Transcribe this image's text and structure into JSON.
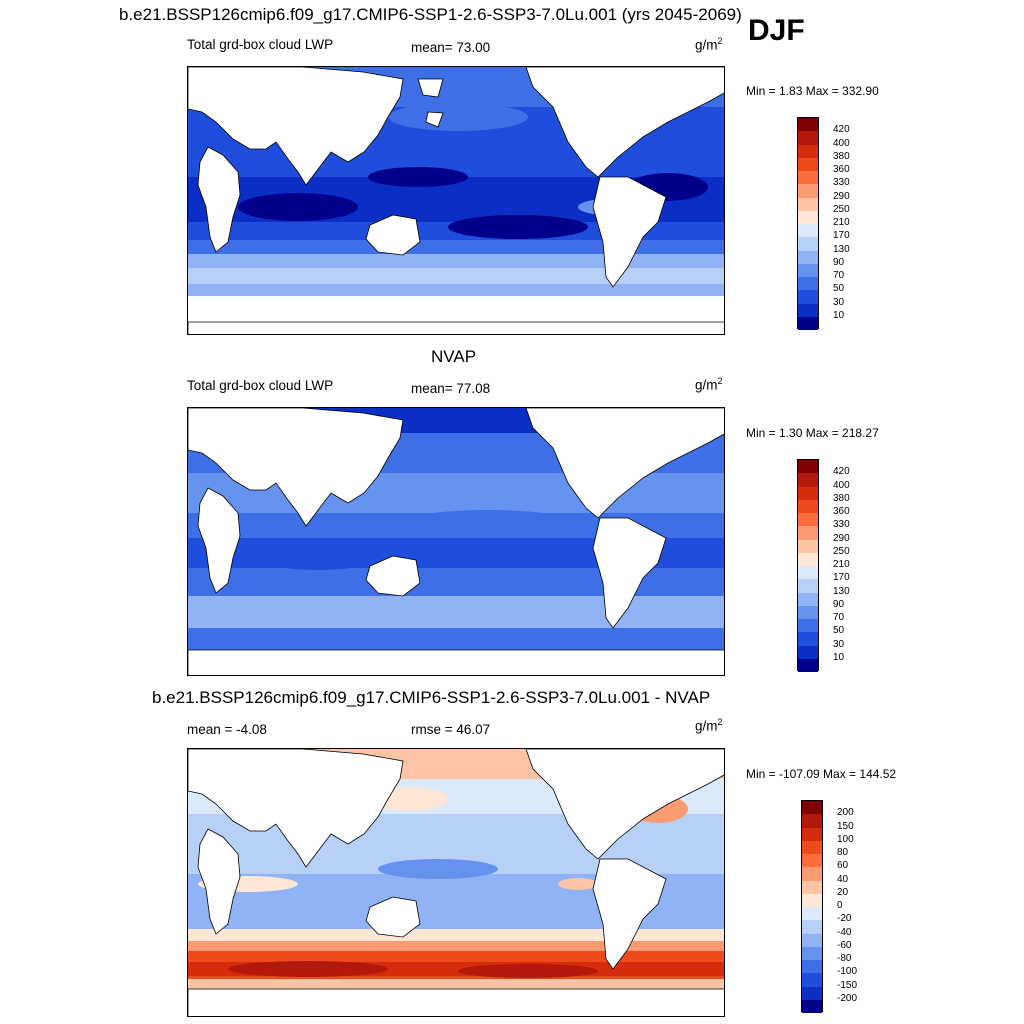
{
  "season_label": "DJF",
  "panels": [
    {
      "title": "b.e21.BSSP126cmip6.f09_g17.CMIP6-SSP1-2.6-SSP3-7.0Lu.001 (yrs 2045-2069)",
      "left_label": "Total grd-box cloud LWP",
      "center_label": "mean=  73.00",
      "units_base": "g/m",
      "units_exp": "2",
      "minmax": "Min =   1.83 Max = 332.90"
    },
    {
      "title": "NVAP",
      "left_label": "Total grd-box cloud LWP",
      "center_label": "mean=  77.08",
      "units_base": "g/m",
      "units_exp": "2",
      "minmax": "Min =   1.30 Max = 218.27"
    },
    {
      "title": "b.e21.BSSP126cmip6.f09_g17.CMIP6-SSP1-2.6-SSP3-7.0Lu.001 - NVAP",
      "left_label": "mean =  -4.08",
      "center_label": "rmse =  46.07",
      "units_base": "g/m",
      "units_exp": "2",
      "minmax": "Min = -107.09 Max = 144.52"
    }
  ],
  "colorbars": {
    "abs": {
      "labels": [
        "420",
        "400",
        "380",
        "360",
        "330",
        "290",
        "250",
        "210",
        "170",
        "130",
        "90",
        "70",
        "50",
        "30",
        "10"
      ],
      "colors": [
        "#7f0000",
        "#b3180c",
        "#d42c0c",
        "#ef4a1c",
        "#fb6d3c",
        "#fb9b72",
        "#fcc3a5",
        "#fee6d5",
        "#dbe9fb",
        "#b6d0f8",
        "#8fb3f5",
        "#6592ef",
        "#3f6fe6",
        "#1f4ddc",
        "#0b2fc4",
        "#00008b"
      ]
    },
    "diff": {
      "labels": [
        "200",
        "150",
        "100",
        "80",
        "60",
        "40",
        "20",
        "0",
        "-20",
        "-40",
        "-60",
        "-80",
        "-100",
        "-150",
        "-200"
      ],
      "colors": [
        "#7f0000",
        "#b3180c",
        "#d42c0c",
        "#ef4a1c",
        "#fb6d3c",
        "#fb9b72",
        "#fcc3a5",
        "#fee6d5",
        "#dbe9fb",
        "#b6d0f8",
        "#8fb3f5",
        "#6592ef",
        "#3f6fe6",
        "#1f4ddc",
        "#0b2fc4",
        "#00008b"
      ]
    }
  },
  "chart_data": [
    {
      "type": "heatmap",
      "title": "b.e21.BSSP126cmip6.f09_g17.CMIP6-SSP1-2.6-SSP3-7.0Lu.001 (yrs 2045-2069)",
      "variable": "Total grd-box cloud LWP",
      "units": "g/m2",
      "season": "DJF",
      "mean": 73.0,
      "min": 1.83,
      "max": 332.9,
      "contour_levels": [
        10,
        30,
        50,
        70,
        90,
        130,
        170,
        210,
        250,
        290,
        330,
        360,
        380,
        400,
        420
      ]
    },
    {
      "type": "heatmap",
      "title": "NVAP",
      "variable": "Total grd-box cloud LWP",
      "units": "g/m2",
      "mean": 77.08,
      "min": 1.3,
      "max": 218.27,
      "contour_levels": [
        10,
        30,
        50,
        70,
        90,
        130,
        170,
        210,
        250,
        290,
        330,
        360,
        380,
        400,
        420
      ]
    },
    {
      "type": "heatmap",
      "title": "b.e21.BSSP126cmip6.f09_g17.CMIP6-SSP1-2.6-SSP3-7.0Lu.001 - NVAP",
      "units": "g/m2",
      "mean": -4.08,
      "rmse": 46.07,
      "min": -107.09,
      "max": 144.52,
      "contour_levels": [
        -200,
        -150,
        -100,
        -80,
        -60,
        -40,
        -20,
        0,
        20,
        40,
        60,
        80,
        100,
        150,
        200
      ]
    }
  ]
}
